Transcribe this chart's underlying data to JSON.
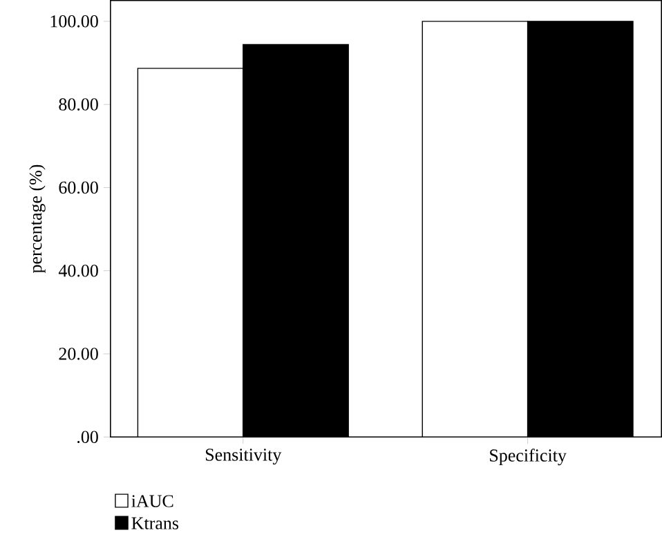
{
  "chart_data": {
    "type": "bar",
    "ylabel": "percentage (%)",
    "categories": [
      "Sensitivity",
      "Specificity"
    ],
    "series": [
      {
        "name": "iAUC",
        "color": "#ffffff",
        "values": [
          88.7,
          100
        ]
      },
      {
        "name": "Ktrans",
        "color": "#000000",
        "values": [
          94.4,
          100
        ]
      }
    ],
    "ylim": [
      0,
      105
    ],
    "yticks": [
      {
        "value": 0,
        "label": ".00"
      },
      {
        "value": 20,
        "label": "20.00"
      },
      {
        "value": 40,
        "label": "40.00"
      },
      {
        "value": 60,
        "label": "60.00"
      },
      {
        "value": 80,
        "label": "80.00"
      },
      {
        "value": 100,
        "label": "100.00"
      }
    ],
    "legend": "bottom left",
    "grid": false
  }
}
